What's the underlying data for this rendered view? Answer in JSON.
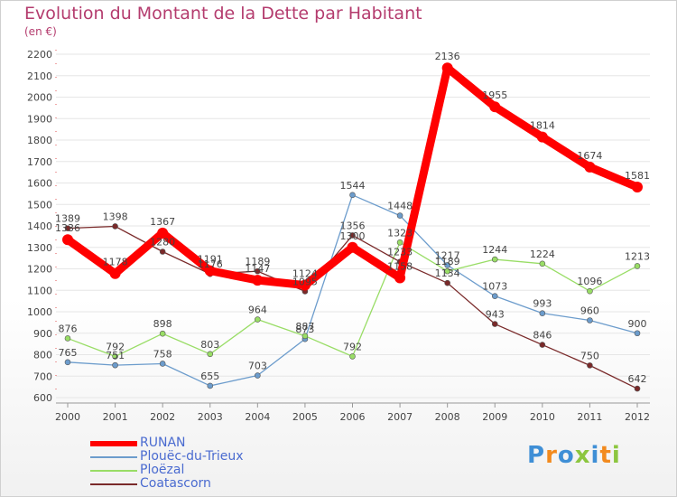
{
  "title": "Evolution du Montant de la Dette par Habitant",
  "subtitle": "(en €)",
  "logo_text": "Proxiti",
  "chart_data": {
    "type": "line",
    "title": "Evolution du Montant de la Dette par Habitant",
    "ylabel": "(en €)",
    "ylim": [
      600,
      2200
    ],
    "yticks": [
      600,
      700,
      800,
      900,
      1000,
      1100,
      1200,
      1300,
      1400,
      1500,
      1600,
      1700,
      1800,
      1900,
      2000,
      2100,
      2200
    ],
    "categories": [
      "2000",
      "2001",
      "2002",
      "2003",
      "2004",
      "2005",
      "2006",
      "2007",
      "2008",
      "2009",
      "2010",
      "2011",
      "2012"
    ],
    "series": [
      {
        "name": "RUNAN",
        "color": "#ff0000",
        "values": [
          1336,
          1178,
          1367,
          1191,
          1147,
          1124,
          1300,
          1158,
          2136,
          1955,
          1814,
          1674,
          1581
        ]
      },
      {
        "name": "Plouëc-du-Trieux",
        "color": "#6c9ccc",
        "values": [
          765,
          751,
          758,
          655,
          703,
          873,
          1544,
          1448,
          1217,
          1073,
          993,
          960,
          900
        ]
      },
      {
        "name": "Ploëzal",
        "color": "#99dd66",
        "values": [
          876,
          792,
          898,
          803,
          964,
          887,
          792,
          1323,
          1189,
          1244,
          1224,
          1096,
          1213
        ]
      },
      {
        "name": "Coatascorn",
        "color": "#7a2a2a",
        "values": [
          1389,
          1398,
          1280,
          1176,
          1189,
          1095,
          1356,
          1233,
          1134,
          943,
          846,
          750,
          642
        ]
      }
    ]
  }
}
